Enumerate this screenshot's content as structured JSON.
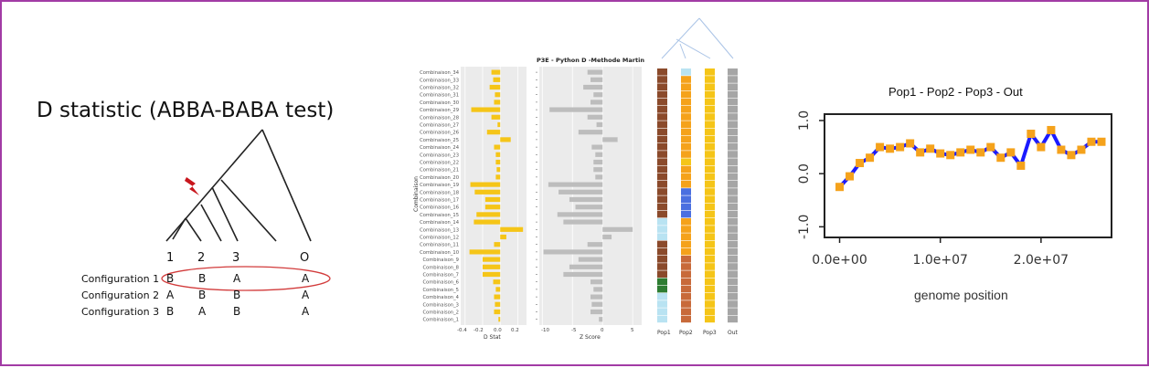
{
  "panel_left": {
    "title": "D statistic (ABBA-BABA test)",
    "tips": [
      "1",
      "2",
      "3",
      "O"
    ],
    "configurations": [
      {
        "label": "Configuration 1",
        "pattern": [
          "B",
          "B",
          "A",
          "A"
        ],
        "highlighted": true
      },
      {
        "label": "Configuration 2",
        "pattern": [
          "A",
          "B",
          "B",
          "A"
        ],
        "highlighted": false
      },
      {
        "label": "Configuration 3",
        "pattern": [
          "B",
          "A",
          "B",
          "A"
        ],
        "highlighted": false
      }
    ],
    "colors": {
      "highlight_ellipse": "#d23b3b",
      "lightning": "#c8161d",
      "tree": "#222222"
    }
  },
  "panel_mid": {
    "title": "P3E - Python D -Methode Martin",
    "y_axis_label": "Combinaison",
    "d_axis_label": "D Stat",
    "z_axis_label": "Z Score",
    "d_ticks": [
      "-0.4",
      "-0.2",
      "0.0",
      "0.2"
    ],
    "z_ticks": [
      "-10",
      "-5",
      "0",
      "5"
    ],
    "column_labels": [
      "Pop1",
      "Pop2",
      "Pop3",
      "Out"
    ],
    "colors": {
      "d_bar": "#f5c518",
      "z_bar": "#bdbdbd",
      "panel_bg": "#ebebeb",
      "brown": "#8b4a2b",
      "light_blue": "#b9e3f2",
      "orange": "#f5a21b",
      "yellow": "#f5c518",
      "blue": "#4a6fe0",
      "green": "#2e7d32",
      "rust": "#c86a3a",
      "gray": "#a6a6a6"
    }
  },
  "panel_right": {
    "title": "Pop1 - Pop2 - Pop3 - Out",
    "xlabel": "genome position",
    "colors": {
      "line": "#1a1aff",
      "marker": "#f5a21b"
    }
  },
  "chart_data": [
    {
      "type": "bar",
      "orientation": "horizontal",
      "title": "P3E - Python D -Methode Martin",
      "xlabel": "D Stat",
      "ylabel": "Combinaison",
      "xlim": [
        -0.45,
        0.3
      ],
      "categories": [
        "Combinaison_34",
        "Combinaison_33",
        "Combinaison_32",
        "Combinaison_31",
        "Combinaison_30",
        "Combinaison_29",
        "Combinaison_28",
        "Combinaison_27",
        "Combinaison_26",
        "Combinaison_25",
        "Combinaison_24",
        "Combinaison_23",
        "Combinaison_22",
        "Combinaison_21",
        "Combinaison_20",
        "Combinaison_19",
        "Combinaison_18",
        "Combinaison_17",
        "Combinaison_16",
        "Combinaison_15",
        "Combinaison_14",
        "Combinaison_13",
        "Combinaison_12",
        "Combinaison_11",
        "Combinaison_10",
        "Combinaison_9",
        "Combinaison_8",
        "Combinaison_7",
        "Combinaison_6",
        "Combinaison_5",
        "Combinaison_4",
        "Combinaison_3",
        "Combinaison_2",
        "Combinaison_1"
      ],
      "values": [
        -0.1,
        -0.08,
        -0.12,
        -0.06,
        -0.07,
        -0.33,
        -0.1,
        -0.03,
        -0.15,
        0.12,
        -0.07,
        -0.05,
        -0.05,
        -0.04,
        -0.05,
        -0.34,
        -0.29,
        -0.17,
        -0.17,
        -0.27,
        -0.3,
        0.26,
        0.07,
        -0.07,
        -0.35,
        -0.2,
        -0.2,
        -0.2,
        -0.08,
        -0.05,
        -0.07,
        -0.06,
        -0.07,
        -0.02
      ]
    },
    {
      "type": "bar",
      "orientation": "horizontal",
      "xlabel": "Z Score",
      "xlim": [
        -10.5,
        6.5
      ],
      "categories": [
        "Combinaison_34",
        "Combinaison_33",
        "Combinaison_32",
        "Combinaison_31",
        "Combinaison_30",
        "Combinaison_29",
        "Combinaison_28",
        "Combinaison_27",
        "Combinaison_26",
        "Combinaison_25",
        "Combinaison_24",
        "Combinaison_23",
        "Combinaison_22",
        "Combinaison_21",
        "Combinaison_20",
        "Combinaison_19",
        "Combinaison_18",
        "Combinaison_17",
        "Combinaison_16",
        "Combinaison_15",
        "Combinaison_14",
        "Combinaison_13",
        "Combinaison_12",
        "Combinaison_11",
        "Combinaison_10",
        "Combinaison_9",
        "Combinaison_8",
        "Combinaison_7",
        "Combinaison_6",
        "Combinaison_5",
        "Combinaison_4",
        "Combinaison_3",
        "Combinaison_2",
        "Combinaison_1"
      ],
      "values": [
        -2.5,
        -2,
        -3.2,
        -1.5,
        -2,
        -8.8,
        -2.5,
        -1,
        -4,
        2.5,
        -1.8,
        -1.2,
        -1.5,
        -1.5,
        -1.2,
        -9,
        -7.3,
        -5.5,
        -4.5,
        -7.5,
        -6.5,
        5,
        1.5,
        -2.5,
        -9.8,
        -4,
        -5.5,
        -6.5,
        -2,
        -1.5,
        -2,
        -1.8,
        -2,
        -0.6
      ]
    },
    {
      "type": "heatmap",
      "columns": [
        "Pop1",
        "Pop2",
        "Pop3",
        "Out"
      ],
      "rows_top_to_bottom": 34,
      "cells": {
        "Pop1": [
          "brown",
          "brown",
          "brown",
          "brown",
          "brown",
          "brown",
          "brown",
          "brown",
          "brown",
          "brown",
          "brown",
          "brown",
          "brown",
          "brown",
          "brown",
          "brown",
          "brown",
          "brown",
          "brown",
          "brown",
          "light_blue",
          "light_blue",
          "light_blue",
          "brown",
          "brown",
          "brown",
          "brown",
          "brown",
          "green",
          "green",
          "light_blue",
          "light_blue",
          "light_blue",
          "light_blue"
        ],
        "Pop2": [
          "light_blue",
          "orange",
          "orange",
          "orange",
          "orange",
          "orange",
          "orange",
          "orange",
          "orange",
          "orange",
          "orange",
          "orange",
          "yellow",
          "orange",
          "orange",
          "orange",
          "blue",
          "blue",
          "blue",
          "blue",
          "orange",
          "orange",
          "orange",
          "orange",
          "orange",
          "rust",
          "rust",
          "rust",
          "rust",
          "rust",
          "rust",
          "rust",
          "rust",
          "rust"
        ],
        "Pop3": [
          "yellow",
          "yellow",
          "yellow",
          "yellow",
          "yellow",
          "yellow",
          "yellow",
          "yellow",
          "yellow",
          "yellow",
          "yellow",
          "yellow",
          "yellow",
          "yellow",
          "yellow",
          "yellow",
          "yellow",
          "yellow",
          "yellow",
          "yellow",
          "yellow",
          "yellow",
          "yellow",
          "yellow",
          "yellow",
          "yellow",
          "yellow",
          "yellow",
          "yellow",
          "yellow",
          "yellow",
          "yellow",
          "yellow",
          "yellow"
        ],
        "Out": [
          "gray",
          "gray",
          "gray",
          "gray",
          "gray",
          "gray",
          "gray",
          "gray",
          "gray",
          "gray",
          "gray",
          "gray",
          "gray",
          "gray",
          "gray",
          "gray",
          "gray",
          "gray",
          "gray",
          "gray",
          "gray",
          "gray",
          "gray",
          "gray",
          "gray",
          "gray",
          "gray",
          "gray",
          "gray",
          "gray",
          "gray",
          "gray",
          "gray",
          "gray"
        ]
      }
    },
    {
      "type": "line",
      "title": "Pop1 - Pop2 - Pop3 - Out",
      "xlabel": "genome position",
      "ylabel": "",
      "xlim": [
        -1500000,
        27000000
      ],
      "ylim": [
        -1.2,
        1.12
      ],
      "x_ticks": [
        "0.0e+00",
        "1.0e+07",
        "2.0e+07"
      ],
      "x_tick_values": [
        0,
        10000000,
        20000000
      ],
      "y_ticks": [
        "-1.0",
        "0.0",
        "1.0"
      ],
      "y_tick_values": [
        -1.0,
        0.0,
        1.0
      ],
      "x": [
        0,
        1000000,
        2000000,
        3000000,
        4000000,
        5000000,
        6000000,
        7000000,
        8000000,
        9000000,
        10000000,
        11000000,
        12000000,
        13000000,
        14000000,
        15000000,
        16000000,
        17000000,
        18000000,
        19000000,
        20000000,
        21000000,
        22000000,
        23000000,
        24000000,
        25000000,
        26000000
      ],
      "y": [
        -0.25,
        -0.05,
        0.2,
        0.3,
        0.5,
        0.47,
        0.5,
        0.57,
        0.4,
        0.47,
        0.38,
        0.35,
        0.4,
        0.45,
        0.4,
        0.5,
        0.3,
        0.4,
        0.15,
        0.75,
        0.5,
        0.82,
        0.45,
        0.35,
        0.45,
        0.6,
        0.6
      ]
    }
  ]
}
